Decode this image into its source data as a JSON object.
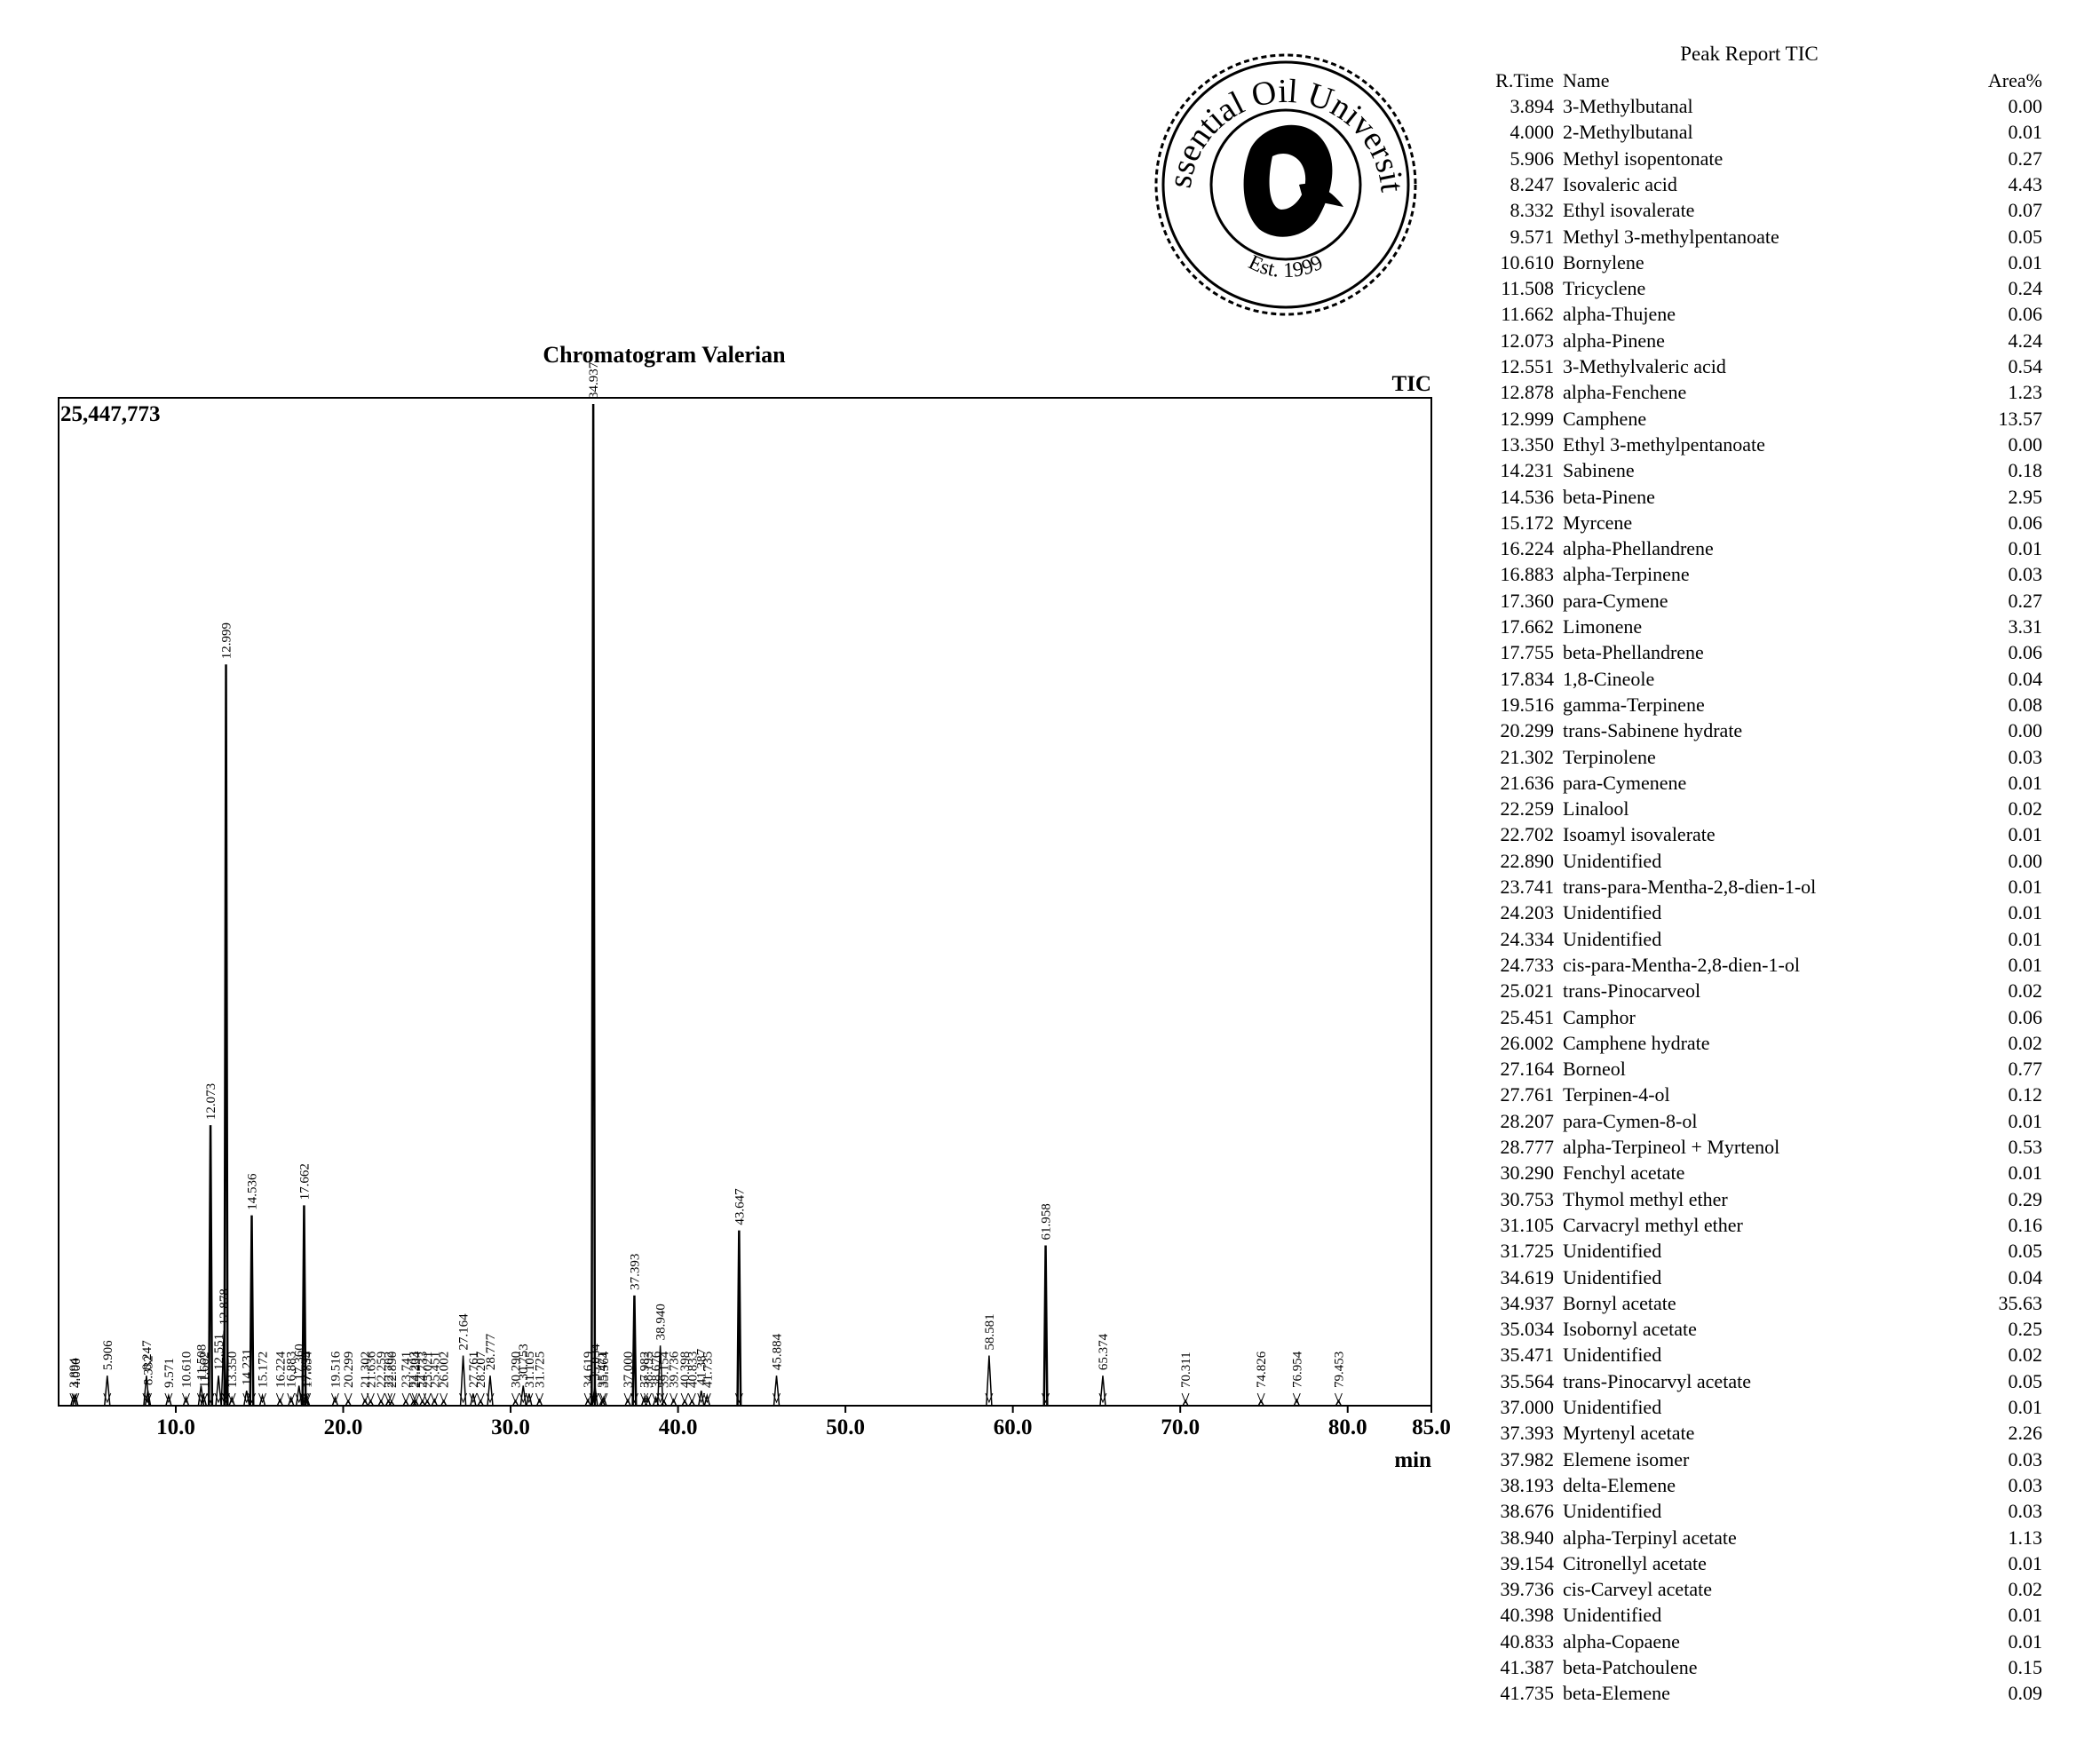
{
  "chart_data": {
    "type": "line",
    "title": "Chromatogram Valerian",
    "xlabel": "min",
    "signal_label": "TIC",
    "max_intensity_label": "25,447,773",
    "xlim": [
      3.0,
      85.0
    ],
    "x_ticks": [
      "10.0",
      "20.0",
      "30.0",
      "40.0",
      "50.0",
      "60.0",
      "70.0",
      "80.0",
      "85.0"
    ],
    "x_tick_values": [
      10,
      20,
      30,
      40,
      50,
      60,
      70,
      80,
      85
    ],
    "ymax_fraction": 1.0,
    "peaks": [
      {
        "x": 3.894,
        "label": "3.894",
        "h": 0.01
      },
      {
        "x": 4.0,
        "label": "4.000",
        "h": 0.01
      },
      {
        "x": 5.906,
        "label": "5.906",
        "h": 0.03
      },
      {
        "x": 8.247,
        "label": "8.247",
        "h": 0.03
      },
      {
        "x": 8.332,
        "label": "8.332",
        "h": 0.015
      },
      {
        "x": 9.571,
        "label": "9.571",
        "h": 0.01
      },
      {
        "x": 10.61,
        "label": "10.610",
        "h": 0.008
      },
      {
        "x": 11.508,
        "label": "11.508",
        "h": 0.02
      },
      {
        "x": 11.662,
        "label": "11.662",
        "h": 0.01
      },
      {
        "x": 12.073,
        "label": "12.073",
        "h": 0.28
      },
      {
        "x": 12.551,
        "label": "12.551",
        "h": 0.03
      },
      {
        "x": 12.878,
        "label": "12.878",
        "h": 0.075
      },
      {
        "x": 12.999,
        "label": "12.999",
        "h": 0.74
      },
      {
        "x": 13.35,
        "label": "13.350",
        "h": 0.008
      },
      {
        "x": 14.231,
        "label": "14.231",
        "h": 0.015
      },
      {
        "x": 14.536,
        "label": "14.536",
        "h": 0.19
      },
      {
        "x": 15.172,
        "label": "15.172",
        "h": 0.01
      },
      {
        "x": 16.224,
        "label": "16.224",
        "h": 0.006
      },
      {
        "x": 16.883,
        "label": "16.883",
        "h": 0.008
      },
      {
        "x": 17.36,
        "label": "17.360",
        "h": 0.02
      },
      {
        "x": 17.662,
        "label": "17.662",
        "h": 0.2
      },
      {
        "x": 17.755,
        "label": "17.755",
        "h": 0.01
      },
      {
        "x": 17.834,
        "label": "17.834",
        "h": 0.008
      },
      {
        "x": 19.516,
        "label": "19.516",
        "h": 0.008
      },
      {
        "x": 20.299,
        "label": "20.299",
        "h": 0.005
      },
      {
        "x": 21.302,
        "label": "21.302",
        "h": 0.006
      },
      {
        "x": 21.636,
        "label": "21.636",
        "h": 0.005
      },
      {
        "x": 22.259,
        "label": "22.259",
        "h": 0.005
      },
      {
        "x": 22.702,
        "label": "22.702",
        "h": 0.005
      },
      {
        "x": 22.89,
        "label": "22.890",
        "h": 0.004
      },
      {
        "x": 23.741,
        "label": "23.741",
        "h": 0.005
      },
      {
        "x": 24.203,
        "label": "24.203",
        "h": 0.005
      },
      {
        "x": 24.334,
        "label": "24.334",
        "h": 0.005
      },
      {
        "x": 24.733,
        "label": "24.733",
        "h": 0.005
      },
      {
        "x": 25.021,
        "label": "25.021",
        "h": 0.005
      },
      {
        "x": 25.451,
        "label": "25.451",
        "h": 0.006
      },
      {
        "x": 26.002,
        "label": "26.002",
        "h": 0.005
      },
      {
        "x": 27.164,
        "label": "27.164",
        "h": 0.05
      },
      {
        "x": 27.761,
        "label": "27.761",
        "h": 0.012
      },
      {
        "x": 28.207,
        "label": "28.207",
        "h": 0.005
      },
      {
        "x": 28.777,
        "label": "28.777",
        "h": 0.03
      },
      {
        "x": 30.29,
        "label": "30.290",
        "h": 0.005
      },
      {
        "x": 30.753,
        "label": "30.753",
        "h": 0.02
      },
      {
        "x": 31.105,
        "label": "31.105",
        "h": 0.012
      },
      {
        "x": 31.725,
        "label": "31.725",
        "h": 0.006
      },
      {
        "x": 34.619,
        "label": "34.619",
        "h": 0.006
      },
      {
        "x": 34.937,
        "label": "34.937",
        "h": 1.0
      },
      {
        "x": 35.034,
        "label": "35.034",
        "h": 0.02
      },
      {
        "x": 35.471,
        "label": "35.471",
        "h": 0.006
      },
      {
        "x": 35.564,
        "label": "35.564",
        "h": 0.008
      },
      {
        "x": 37.0,
        "label": "37.000",
        "h": 0.006
      },
      {
        "x": 37.393,
        "label": "37.393",
        "h": 0.11
      },
      {
        "x": 37.982,
        "label": "37.982",
        "h": 0.008
      },
      {
        "x": 38.193,
        "label": "38.193",
        "h": 0.008
      },
      {
        "x": 38.676,
        "label": "38.676",
        "h": 0.008
      },
      {
        "x": 38.94,
        "label": "38.940",
        "h": 0.06
      },
      {
        "x": 39.154,
        "label": "39.154",
        "h": 0.005
      },
      {
        "x": 39.736,
        "label": "39.736",
        "h": 0.006
      },
      {
        "x": 40.398,
        "label": "40.398",
        "h": 0.005
      },
      {
        "x": 40.833,
        "label": "40.833",
        "h": 0.005
      },
      {
        "x": 41.387,
        "label": "41.387",
        "h": 0.015
      },
      {
        "x": 41.735,
        "label": "41.735",
        "h": 0.01
      },
      {
        "x": 43.647,
        "label": "43.647",
        "h": 0.175
      },
      {
        "x": 45.884,
        "label": "45.884",
        "h": 0.03
      },
      {
        "x": 58.581,
        "label": "58.581",
        "h": 0.05
      },
      {
        "x": 61.958,
        "label": "61.958",
        "h": 0.16
      },
      {
        "x": 65.374,
        "label": "65.374",
        "h": 0.03
      },
      {
        "x": 70.311,
        "label": "70.311",
        "h": 0.005
      },
      {
        "x": 74.826,
        "label": "74.826",
        "h": 0.005
      },
      {
        "x": 76.954,
        "label": "76.954",
        "h": 0.006
      },
      {
        "x": 79.453,
        "label": "79.453",
        "h": 0.005
      }
    ]
  },
  "peak_report": {
    "title": "Peak Report TIC",
    "headers": {
      "rtime": "R.Time",
      "name": "Name",
      "area": "Area%"
    },
    "rows": [
      {
        "rtime": "3.894",
        "name": "3-Methylbutanal",
        "area": "0.00"
      },
      {
        "rtime": "4.000",
        "name": "2-Methylbutanal",
        "area": "0.01"
      },
      {
        "rtime": "5.906",
        "name": "Methyl isopentonate",
        "area": "0.27"
      },
      {
        "rtime": "8.247",
        "name": "Isovaleric acid",
        "area": "4.43"
      },
      {
        "rtime": "8.332",
        "name": "Ethyl isovalerate",
        "area": "0.07"
      },
      {
        "rtime": "9.571",
        "name": "Methyl 3-methylpentanoate",
        "area": "0.05"
      },
      {
        "rtime": "10.610",
        "name": "Bornylene",
        "area": "0.01"
      },
      {
        "rtime": "11.508",
        "name": "Tricyclene",
        "area": "0.24"
      },
      {
        "rtime": "11.662",
        "name": "alpha-Thujene",
        "area": "0.06"
      },
      {
        "rtime": "12.073",
        "name": "alpha-Pinene",
        "area": "4.24"
      },
      {
        "rtime": "12.551",
        "name": "3-Methylvaleric acid",
        "area": "0.54"
      },
      {
        "rtime": "12.878",
        "name": "alpha-Fenchene",
        "area": "1.23"
      },
      {
        "rtime": "12.999",
        "name": "Camphene",
        "area": "13.57"
      },
      {
        "rtime": "13.350",
        "name": "Ethyl 3-methylpentanoate",
        "area": "0.00"
      },
      {
        "rtime": "14.231",
        "name": "Sabinene",
        "area": "0.18"
      },
      {
        "rtime": "14.536",
        "name": "beta-Pinene",
        "area": "2.95"
      },
      {
        "rtime": "15.172",
        "name": "Myrcene",
        "area": "0.06"
      },
      {
        "rtime": "16.224",
        "name": "alpha-Phellandrene",
        "area": "0.01"
      },
      {
        "rtime": "16.883",
        "name": "alpha-Terpinene",
        "area": "0.03"
      },
      {
        "rtime": "17.360",
        "name": "para-Cymene",
        "area": "0.27"
      },
      {
        "rtime": "17.662",
        "name": "Limonene",
        "area": "3.31"
      },
      {
        "rtime": "17.755",
        "name": "beta-Phellandrene",
        "area": "0.06"
      },
      {
        "rtime": "17.834",
        "name": "1,8-Cineole",
        "area": "0.04"
      },
      {
        "rtime": "19.516",
        "name": "gamma-Terpinene",
        "area": "0.08"
      },
      {
        "rtime": "20.299",
        "name": "trans-Sabinene hydrate",
        "area": "0.00"
      },
      {
        "rtime": "21.302",
        "name": "Terpinolene",
        "area": "0.03"
      },
      {
        "rtime": "21.636",
        "name": "para-Cymenene",
        "area": "0.01"
      },
      {
        "rtime": "22.259",
        "name": "Linalool",
        "area": "0.02"
      },
      {
        "rtime": "22.702",
        "name": "Isoamyl isovalerate",
        "area": "0.01"
      },
      {
        "rtime": "22.890",
        "name": "Unidentified",
        "area": "0.00"
      },
      {
        "rtime": "23.741",
        "name": "trans-para-Mentha-2,8-dien-1-ol",
        "area": "0.01"
      },
      {
        "rtime": "24.203",
        "name": "Unidentified",
        "area": "0.01"
      },
      {
        "rtime": "24.334",
        "name": "Unidentified",
        "area": "0.01"
      },
      {
        "rtime": "24.733",
        "name": "cis-para-Mentha-2,8-dien-1-ol",
        "area": "0.01"
      },
      {
        "rtime": "25.021",
        "name": "trans-Pinocarveol",
        "area": "0.02"
      },
      {
        "rtime": "25.451",
        "name": "Camphor",
        "area": "0.06"
      },
      {
        "rtime": "26.002",
        "name": "Camphene hydrate",
        "area": "0.02"
      },
      {
        "rtime": "27.164",
        "name": "Borneol",
        "area": "0.77"
      },
      {
        "rtime": "27.761",
        "name": "Terpinen-4-ol",
        "area": "0.12"
      },
      {
        "rtime": "28.207",
        "name": "para-Cymen-8-ol",
        "area": "0.01"
      },
      {
        "rtime": "28.777",
        "name": "alpha-Terpineol + Myrtenol",
        "area": "0.53"
      },
      {
        "rtime": "30.290",
        "name": "Fenchyl acetate",
        "area": "0.01"
      },
      {
        "rtime": "30.753",
        "name": "Thymol methyl ether",
        "area": "0.29"
      },
      {
        "rtime": "31.105",
        "name": "Carvacryl methyl ether",
        "area": "0.16"
      },
      {
        "rtime": "31.725",
        "name": "Unidentified",
        "area": "0.05"
      },
      {
        "rtime": "34.619",
        "name": "Unidentified",
        "area": "0.04"
      },
      {
        "rtime": "34.937",
        "name": "Bornyl acetate",
        "area": "35.63"
      },
      {
        "rtime": "35.034",
        "name": "Isobornyl acetate",
        "area": "0.25"
      },
      {
        "rtime": "35.471",
        "name": "Unidentified",
        "area": "0.02"
      },
      {
        "rtime": "35.564",
        "name": "trans-Pinocarvyl acetate",
        "area": "0.05"
      },
      {
        "rtime": "37.000",
        "name": "Unidentified",
        "area": "0.01"
      },
      {
        "rtime": "37.393",
        "name": "Myrtenyl acetate",
        "area": "2.26"
      },
      {
        "rtime": "37.982",
        "name": "Elemene isomer",
        "area": "0.03"
      },
      {
        "rtime": "38.193",
        "name": "delta-Elemene",
        "area": "0.03"
      },
      {
        "rtime": "38.676",
        "name": "Unidentified",
        "area": "0.03"
      },
      {
        "rtime": "38.940",
        "name": "alpha-Terpinyl acetate",
        "area": "1.13"
      },
      {
        "rtime": "39.154",
        "name": "Citronellyl acetate",
        "area": "0.01"
      },
      {
        "rtime": "39.736",
        "name": "cis-Carveyl acetate",
        "area": "0.02"
      },
      {
        "rtime": "40.398",
        "name": "Unidentified",
        "area": "0.01"
      },
      {
        "rtime": "40.833",
        "name": "alpha-Copaene",
        "area": "0.01"
      },
      {
        "rtime": "41.387",
        "name": "beta-Patchoulene",
        "area": "0.15"
      },
      {
        "rtime": "41.735",
        "name": "beta-Elemene",
        "area": "0.09"
      }
    ]
  },
  "logo": {
    "text_top": "Essential Oil University",
    "text_bottom": "Est. 1999"
  }
}
